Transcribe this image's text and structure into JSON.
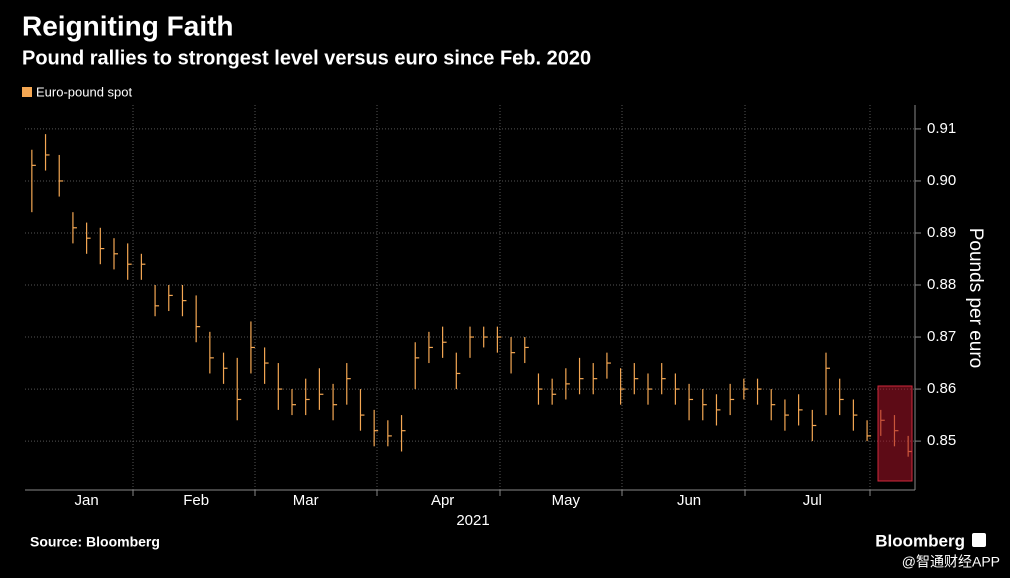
{
  "chart_data": {
    "type": "hlc",
    "title": "Reigniting Faith",
    "subtitle": "Pound rallies to strongest level versus euro since Feb. 2020",
    "y_label": "Pounds per euro",
    "x_label": "2021",
    "source": "Source: Bloomberg",
    "brand": "Bloomberg",
    "watermark": "@智通财经APP",
    "legend": "top-left",
    "grid": true,
    "categories": [
      null,
      null,
      null,
      null,
      "Jan",
      null,
      null,
      null,
      null,
      null,
      null,
      null,
      "Feb",
      null,
      null,
      null,
      null,
      null,
      null,
      null,
      "Mar",
      null,
      null,
      null,
      null,
      null,
      null,
      null,
      null,
      null,
      "Apr",
      null,
      null,
      null,
      null,
      null,
      null,
      null,
      null,
      "May",
      null,
      null,
      null,
      null,
      null,
      null,
      null,
      null,
      "Jun",
      null,
      null,
      null,
      null,
      null,
      null,
      null,
      null,
      "Jul",
      null,
      null,
      null,
      null,
      null,
      null,
      null
    ],
    "ylim": [
      0.8406,
      0.9146
    ],
    "yticks": [
      0.85,
      0.86,
      0.87,
      0.88,
      0.89,
      {
        "value": 0.9,
        "label": "0.90"
      },
      0.91
    ],
    "series": [
      {
        "name": "Euro-pound spot",
        "color": "#f4a753",
        "high": [
          0.906,
          0.909,
          0.905,
          0.894,
          0.892,
          0.891,
          0.889,
          0.888,
          0.886,
          0.88,
          0.88,
          0.88,
          0.878,
          0.871,
          0.867,
          0.866,
          0.873,
          0.868,
          0.865,
          0.86,
          0.862,
          0.864,
          0.861,
          0.865,
          0.86,
          0.856,
          0.854,
          0.855,
          0.869,
          0.871,
          0.872,
          0.867,
          0.872,
          0.872,
          0.872,
          0.87,
          0.87,
          0.863,
          0.862,
          0.864,
          0.866,
          0.865,
          0.867,
          0.864,
          0.865,
          0.863,
          0.865,
          0.863,
          0.861,
          0.86,
          0.859,
          0.861,
          0.862,
          0.862,
          0.86,
          0.858,
          0.859,
          0.856,
          0.867,
          0.862,
          0.858,
          0.854,
          0.856,
          0.855,
          0.851
        ],
        "low": [
          0.894,
          0.902,
          0.897,
          0.888,
          0.886,
          0.884,
          0.883,
          0.881,
          0.881,
          0.874,
          0.875,
          0.874,
          0.869,
          0.863,
          0.861,
          0.854,
          0.863,
          0.861,
          0.856,
          0.855,
          0.855,
          0.856,
          0.854,
          0.857,
          0.852,
          0.849,
          0.849,
          0.848,
          0.86,
          0.865,
          0.866,
          0.86,
          0.866,
          0.868,
          0.867,
          0.863,
          0.865,
          0.857,
          0.857,
          0.858,
          0.859,
          0.859,
          0.862,
          0.857,
          0.859,
          0.857,
          0.859,
          0.857,
          0.854,
          0.854,
          0.853,
          0.855,
          0.858,
          0.857,
          0.854,
          0.852,
          0.853,
          0.85,
          0.855,
          0.855,
          0.852,
          0.85,
          0.851,
          0.849,
          0.847
        ],
        "close": [
          0.903,
          0.905,
          0.9,
          0.891,
          0.889,
          0.887,
          0.886,
          0.884,
          0.884,
          0.876,
          0.878,
          0.877,
          0.872,
          0.866,
          0.864,
          0.858,
          0.868,
          0.865,
          0.86,
          0.857,
          0.858,
          0.859,
          0.857,
          0.862,
          0.855,
          0.852,
          0.851,
          0.852,
          0.866,
          0.868,
          0.869,
          0.863,
          0.87,
          0.87,
          0.87,
          0.867,
          0.868,
          0.86,
          0.859,
          0.861,
          0.862,
          0.862,
          0.865,
          0.86,
          0.862,
          0.86,
          0.862,
          0.86,
          0.858,
          0.857,
          0.856,
          0.858,
          0.86,
          0.86,
          0.857,
          0.855,
          0.856,
          0.853,
          0.864,
          0.858,
          0.855,
          0.851,
          0.854,
          0.852,
          0.848
        ]
      }
    ]
  }
}
